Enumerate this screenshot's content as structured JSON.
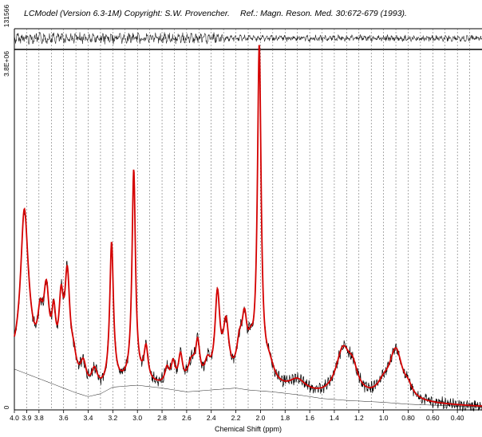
{
  "header": {
    "title": "LCModel (Version 6.3-1M) Copyright: S.W. Provencher.",
    "reference": "Ref.: Magn. Reson. Med. 30:672-679 (1993)."
  },
  "chart_data": {
    "type": "line",
    "xlabel": "Chemical Shift (ppm)",
    "x_reversed": true,
    "xlim": [
      4.0,
      0.2
    ],
    "x_ticks": [
      4.0,
      3.9,
      3.8,
      3.6,
      3.4,
      3.2,
      3.0,
      2.8,
      2.6,
      2.4,
      2.2,
      2.0,
      1.8,
      1.6,
      1.4,
      1.2,
      1.0,
      0.8,
      0.6,
      0.4
    ],
    "x_tick_labels": [
      "4.0",
      "3.9",
      "3.8",
      "3.6",
      "3.4",
      "3.2",
      "3.0",
      "2.8",
      "2.6",
      "2.4",
      "2.2",
      "2.0",
      "1.8",
      "1.6",
      "1.4",
      "1.2",
      "1.0",
      "0.80",
      "0.60",
      "0.40"
    ],
    "gridlines_ppm": [
      3.9,
      3.8,
      3.7,
      3.6,
      3.5,
      3.4,
      3.3,
      3.2,
      3.1,
      3.0,
      2.9,
      2.8,
      2.7,
      2.6,
      2.5,
      2.4,
      2.3,
      2.2,
      2.1,
      2.0,
      1.9,
      1.8,
      1.7,
      1.6,
      1.5,
      1.4,
      1.3,
      1.2,
      1.1,
      1.0,
      0.9,
      0.8,
      0.7,
      0.6,
      0.5,
      0.4,
      0.3
    ],
    "main_panel": {
      "ylim": [
        0,
        3800000
      ],
      "y_tick_labels": {
        "top": "3.8E+06",
        "bottom": "0"
      },
      "peaks": [
        {
          "ppm": 3.92,
          "height": 1330000,
          "width": 0.035
        },
        {
          "ppm": 3.9,
          "height": 380000,
          "width": 0.06
        },
        {
          "ppm": 3.79,
          "height": 430000,
          "width": 0.025
        },
        {
          "ppm": 3.74,
          "height": 780000,
          "width": 0.028
        },
        {
          "ppm": 3.68,
          "height": 520000,
          "width": 0.02
        },
        {
          "ppm": 3.62,
          "height": 700000,
          "width": 0.022
        },
        {
          "ppm": 3.57,
          "height": 1040000,
          "width": 0.025
        },
        {
          "ppm": 3.52,
          "height": 220000,
          "width": 0.03
        },
        {
          "ppm": 3.44,
          "height": 250000,
          "width": 0.03
        },
        {
          "ppm": 3.35,
          "height": 200000,
          "width": 0.03
        },
        {
          "ppm": 3.21,
          "height": 1480000,
          "width": 0.018
        },
        {
          "ppm": 3.03,
          "height": 2230000,
          "width": 0.017
        },
        {
          "ppm": 2.93,
          "height": 350000,
          "width": 0.02
        },
        {
          "ppm": 2.76,
          "height": 160000,
          "width": 0.02
        },
        {
          "ppm": 2.71,
          "height": 220000,
          "width": 0.02
        },
        {
          "ppm": 2.65,
          "height": 300000,
          "width": 0.02
        },
        {
          "ppm": 2.56,
          "height": 250000,
          "width": 0.04
        },
        {
          "ppm": 2.51,
          "height": 380000,
          "width": 0.02
        },
        {
          "ppm": 2.43,
          "height": 200000,
          "width": 0.03
        },
        {
          "ppm": 2.35,
          "height": 900000,
          "width": 0.024
        },
        {
          "ppm": 2.28,
          "height": 580000,
          "width": 0.028
        },
        {
          "ppm": 2.17,
          "height": 330000,
          "width": 0.03
        },
        {
          "ppm": 2.13,
          "height": 530000,
          "width": 0.025
        },
        {
          "ppm": 2.08,
          "height": 260000,
          "width": 0.03
        },
        {
          "ppm": 2.01,
          "height": 3500000,
          "width": 0.018
        },
        {
          "ppm": 1.93,
          "height": 200000,
          "width": 0.05
        },
        {
          "ppm": 1.7,
          "height": 120000,
          "width": 0.08
        },
        {
          "ppm": 1.33,
          "height": 480000,
          "width": 0.07
        },
        {
          "ppm": 1.25,
          "height": 220000,
          "width": 0.05
        },
        {
          "ppm": 1.0,
          "height": 110000,
          "width": 0.06
        },
        {
          "ppm": 0.9,
          "height": 520000,
          "width": 0.065
        },
        {
          "ppm": 0.8,
          "height": 90000,
          "width": 0.04
        }
      ],
      "baseline_points": [
        [
          4.0,
          430000
        ],
        [
          3.9,
          380000
        ],
        [
          3.8,
          330000
        ],
        [
          3.7,
          280000
        ],
        [
          3.6,
          230000
        ],
        [
          3.5,
          180000
        ],
        [
          3.4,
          140000
        ],
        [
          3.3,
          170000
        ],
        [
          3.2,
          240000
        ],
        [
          3.0,
          260000
        ],
        [
          2.8,
          230000
        ],
        [
          2.6,
          190000
        ],
        [
          2.4,
          210000
        ],
        [
          2.2,
          230000
        ],
        [
          2.1,
          210000
        ],
        [
          1.9,
          190000
        ],
        [
          1.7,
          160000
        ],
        [
          1.5,
          120000
        ],
        [
          1.3,
          100000
        ],
        [
          1.0,
          80000
        ],
        [
          0.8,
          60000
        ],
        [
          0.6,
          50000
        ],
        [
          0.4,
          40000
        ],
        [
          0.2,
          30000
        ]
      ]
    },
    "residual_panel": {
      "y_tick_label": "131566"
    }
  }
}
